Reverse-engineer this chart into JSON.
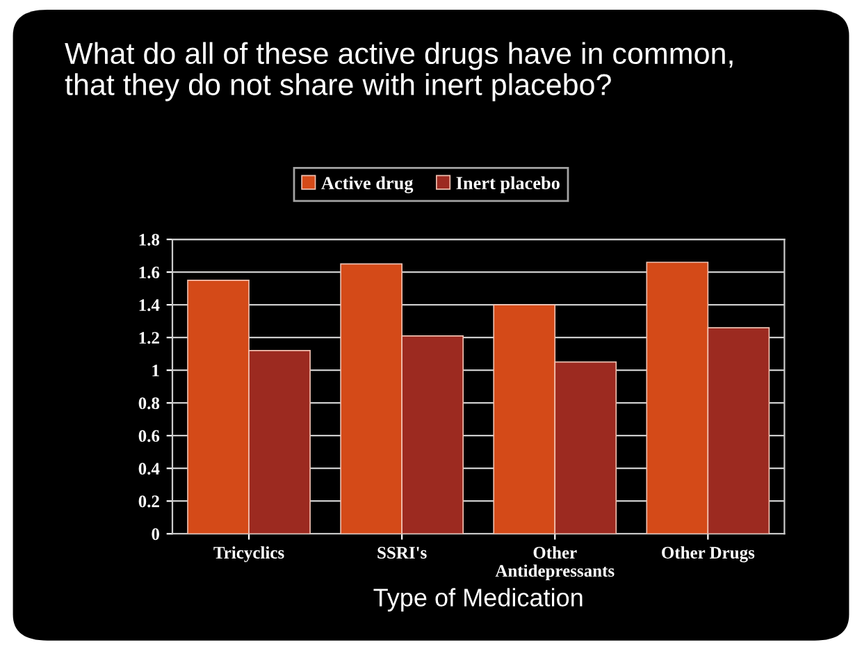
{
  "chart_data": {
    "type": "bar",
    "title": "What do all of these active drugs have in common,\nthat they do not share with inert placebo?",
    "xlabel": "Type of Medication",
    "categories": [
      "Tricyclics",
      "SSRI's",
      "Other\nAntidepressants",
      "Other Drugs"
    ],
    "series": [
      {
        "name": "Active drug",
        "color": "#d44a18",
        "values": [
          1.55,
          1.65,
          1.4,
          1.66
        ]
      },
      {
        "name": "Inert placebo",
        "color": "#9c2a20",
        "values": [
          1.12,
          1.21,
          1.05,
          1.26
        ]
      }
    ],
    "ylim": [
      0,
      1.8
    ],
    "yticks": [
      0,
      0.2,
      0.4,
      0.6,
      0.8,
      1,
      1.2,
      1.4,
      1.6,
      1.8
    ],
    "grid": "y",
    "legend": "top"
  }
}
